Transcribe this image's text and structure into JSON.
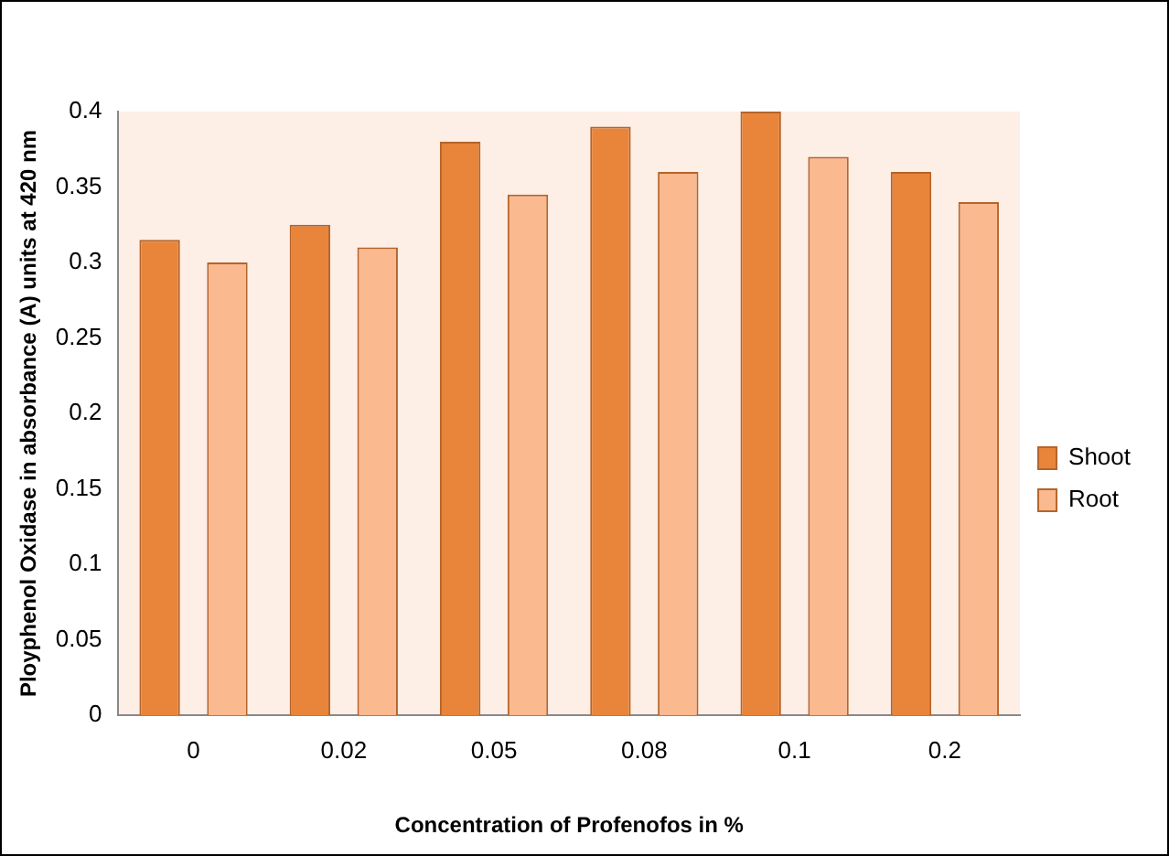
{
  "chart_data": {
    "type": "bar",
    "xlabel": "Concentration of Profenofos in %",
    "ylabel": "Ployphenol Oxidase in absorbance (A) units at 420 nm",
    "categories": [
      "0",
      "0.02",
      "0.05",
      "0.08",
      "0.1",
      "0.2"
    ],
    "series": [
      {
        "name": "Shoot",
        "color": "#e8853a",
        "values": [
          0.315,
          0.325,
          0.38,
          0.39,
          0.4,
          0.36
        ]
      },
      {
        "name": "Root",
        "color": "#fbb98f",
        "values": [
          0.3,
          0.31,
          0.345,
          0.36,
          0.37,
          0.34
        ]
      }
    ],
    "ylim": [
      0,
      0.4
    ],
    "yticks": [
      0,
      0.05,
      0.1,
      0.15,
      0.2,
      0.25,
      0.3,
      0.35,
      0.4
    ],
    "grid": false,
    "legend": "right"
  }
}
